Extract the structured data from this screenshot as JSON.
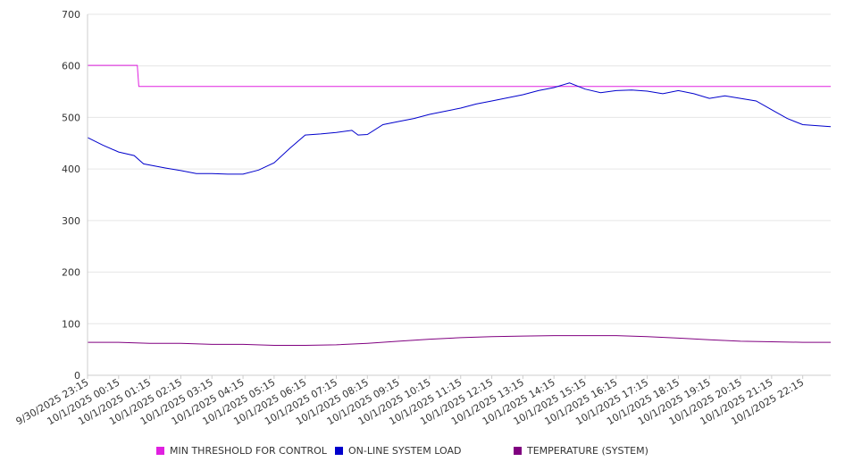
{
  "chart_data": {
    "type": "line",
    "x_categories": [
      "9/30/2025 23:15",
      "10/1/2025 00:15",
      "10/1/2025 01:15",
      "10/1/2025 02:15",
      "10/1/2025 03:15",
      "10/1/2025 04:15",
      "10/1/2025 05:15",
      "10/1/2025 06:15",
      "10/1/2025 07:15",
      "10/1/2025 08:15",
      "10/1/2025 09:15",
      "10/1/2025 10:15",
      "10/1/2025 11:15",
      "10/1/2025 12:15",
      "10/1/2025 13:15",
      "10/1/2025 14:15",
      "10/1/2025 15:15",
      "10/1/2025 16:15",
      "10/1/2025 17:15",
      "10/1/2025 18:15",
      "10/1/2025 19:15",
      "10/1/2025 20:15",
      "10/1/2025 21:15",
      "10/1/2025 22:15"
    ],
    "ylim": [
      0,
      700
    ],
    "y_ticks": [
      "0",
      "100",
      "200",
      "300",
      "400",
      "500",
      "600",
      "700"
    ],
    "grid": true,
    "legend_position": "bottom",
    "series": [
      {
        "name": "MIN THRESHOLD FOR CONTROL",
        "color": "#e020e0",
        "points": [
          [
            0,
            601
          ],
          [
            1.6,
            601
          ],
          [
            1.65,
            560
          ],
          [
            23.9,
            560
          ]
        ]
      },
      {
        "name": "ON-LINE SYSTEM LOAD",
        "color": "#0000cc",
        "points": [
          [
            0,
            461
          ],
          [
            0.5,
            446
          ],
          [
            1,
            433
          ],
          [
            1.5,
            426
          ],
          [
            1.8,
            410
          ],
          [
            2.5,
            402
          ],
          [
            3,
            397
          ],
          [
            3.5,
            391
          ],
          [
            4,
            391
          ],
          [
            4.5,
            390
          ],
          [
            5,
            390
          ],
          [
            5.5,
            398
          ],
          [
            6,
            412
          ],
          [
            6.5,
            440
          ],
          [
            7,
            466
          ],
          [
            7.5,
            468
          ],
          [
            8,
            471
          ],
          [
            8.5,
            475
          ],
          [
            8.7,
            466
          ],
          [
            9,
            467
          ],
          [
            9.5,
            486
          ],
          [
            10,
            492
          ],
          [
            10.5,
            498
          ],
          [
            11,
            506
          ],
          [
            11.5,
            512
          ],
          [
            12,
            518
          ],
          [
            12.5,
            526
          ],
          [
            13,
            532
          ],
          [
            13.5,
            538
          ],
          [
            14,
            544
          ],
          [
            14.5,
            552
          ],
          [
            15,
            558
          ],
          [
            15.5,
            567
          ],
          [
            16,
            555
          ],
          [
            16.5,
            548
          ],
          [
            17,
            552
          ],
          [
            17.5,
            553
          ],
          [
            18,
            551
          ],
          [
            18.5,
            546
          ],
          [
            19,
            552
          ],
          [
            19.5,
            546
          ],
          [
            20,
            537
          ],
          [
            20.5,
            542
          ],
          [
            21,
            537
          ],
          [
            21.5,
            532
          ],
          [
            22,
            515
          ],
          [
            22.5,
            498
          ],
          [
            23,
            486
          ],
          [
            23.9,
            482
          ]
        ]
      },
      {
        "name": "TEMPERATURE (SYSTEM)",
        "color": "#800080",
        "points": [
          [
            0,
            64
          ],
          [
            1,
            64
          ],
          [
            2,
            62
          ],
          [
            3,
            62
          ],
          [
            4,
            60
          ],
          [
            5,
            60
          ],
          [
            6,
            58
          ],
          [
            7,
            58
          ],
          [
            8,
            59
          ],
          [
            9,
            62
          ],
          [
            10,
            66
          ],
          [
            11,
            70
          ],
          [
            12,
            73
          ],
          [
            13,
            75
          ],
          [
            14,
            76
          ],
          [
            15,
            77
          ],
          [
            16,
            77
          ],
          [
            17,
            77
          ],
          [
            18,
            75
          ],
          [
            19,
            72
          ],
          [
            20,
            69
          ],
          [
            21,
            66
          ],
          [
            22,
            65
          ],
          [
            23,
            64
          ],
          [
            23.9,
            64
          ]
        ]
      }
    ]
  }
}
